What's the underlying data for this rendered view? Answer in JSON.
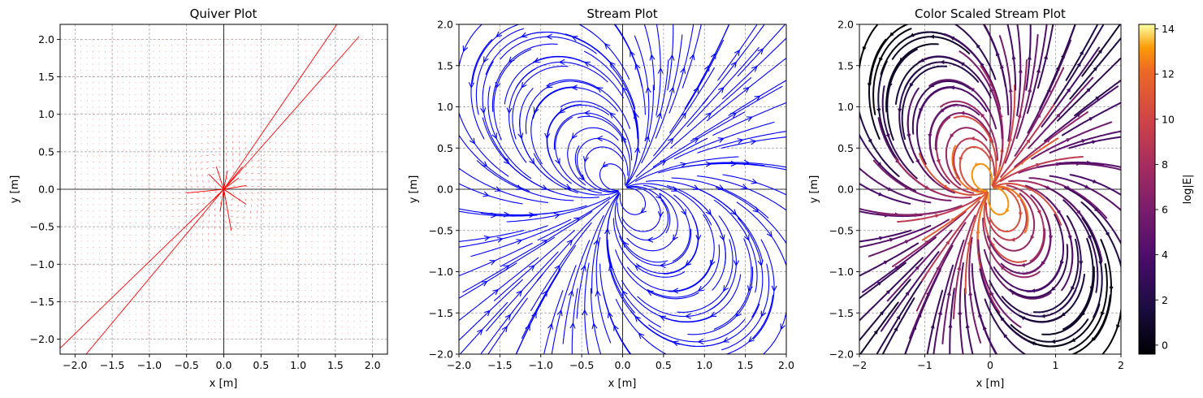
{
  "chart_data": [
    {
      "type": "quiver",
      "title": "Quiver Plot",
      "xlabel": "x [m]",
      "ylabel": "y [m]",
      "xlim": [
        -2.2,
        2.2
      ],
      "ylim": [
        -2.2,
        2.2
      ],
      "xticks": [
        -2.0,
        -1.5,
        -1.0,
        -0.5,
        0.0,
        0.5,
        1.0,
        1.5,
        2.0
      ],
      "yticks": [
        -2.0,
        -1.5,
        -1.0,
        -0.5,
        0.0,
        0.5,
        1.0,
        1.5,
        2.0
      ],
      "xtick_labels": [
        "−2.0",
        "−1.5",
        "−1.0",
        "−0.5",
        "0.0",
        "0.5",
        "1.0",
        "1.5",
        "2.0"
      ],
      "ytick_labels": [
        "−2.0",
        "−1.5",
        "−1.0",
        "−0.5",
        "0.0",
        "0.5",
        "1.0",
        "1.5",
        "2.0"
      ],
      "grid": true,
      "color": "#ff0000",
      "field_region": [
        -2.0,
        2.0
      ],
      "long_arrows": [
        {
          "x": 0.0,
          "y": 0.0,
          "x2": 1.52,
          "y2": 2.2
        },
        {
          "x": 0.05,
          "y": 0.05,
          "x2": 1.82,
          "y2": 2.04
        },
        {
          "x": 0.0,
          "y": 0.0,
          "x2": -2.2,
          "y2": -2.12
        },
        {
          "x": 0.0,
          "y": 0.0,
          "x2": -1.85,
          "y2": -2.2
        }
      ]
    },
    {
      "type": "stream",
      "title": "Stream Plot",
      "xlabel": "x [m]",
      "ylabel": "y [m]",
      "xlim": [
        -2.0,
        2.0
      ],
      "ylim": [
        -2.0,
        2.0
      ],
      "xticks": [
        -2.0,
        -1.5,
        -1.0,
        -0.5,
        0.0,
        0.5,
        1.0,
        1.5,
        2.0
      ],
      "yticks": [
        -2.0,
        -1.5,
        -1.0,
        -0.5,
        0.0,
        0.5,
        1.0,
        1.5,
        2.0
      ],
      "xtick_labels": [
        "−2.0",
        "−1.5",
        "−1.0",
        "−0.5",
        "0.0",
        "0.5",
        "1.0",
        "1.5",
        "2.0"
      ],
      "ytick_labels": [
        "−2.0",
        "−1.5",
        "−1.0",
        "−0.5",
        "0.0",
        "0.5",
        "1.0",
        "1.5",
        "2.0"
      ],
      "grid": true,
      "color": "#0000ff",
      "field": "dipole",
      "dipole_direction": [
        0.77,
        0.64
      ]
    },
    {
      "type": "stream",
      "title": "Color Scaled Stream Plot",
      "xlabel": "x [m]",
      "ylabel": "y [m]",
      "xlim": [
        -2,
        2
      ],
      "ylim": [
        -2,
        2
      ],
      "xticks": [
        -2,
        -1,
        0,
        1,
        2
      ],
      "yticks": [
        -2.0,
        -1.5,
        -1.0,
        -0.5,
        0.0,
        0.5,
        1.0,
        1.5,
        2.0
      ],
      "xtick_labels": [
        "−2",
        "−1",
        "0",
        "1",
        "2"
      ],
      "ytick_labels": [
        "−2.0",
        "−1.5",
        "−1.0",
        "−0.5",
        "0.0",
        "0.5",
        "1.0",
        "1.5",
        "2.0"
      ],
      "grid": true,
      "colormap": "inferno",
      "field": "dipole",
      "dipole_direction": [
        0.77,
        0.64
      ],
      "colorbar": {
        "label": "log|E|",
        "range": [
          -0.4,
          14.2
        ],
        "ticks": [
          0,
          2,
          4,
          6,
          8,
          10,
          12,
          14
        ],
        "tick_labels": [
          "0",
          "2",
          "4",
          "6",
          "8",
          "10",
          "12",
          "14"
        ]
      }
    }
  ]
}
